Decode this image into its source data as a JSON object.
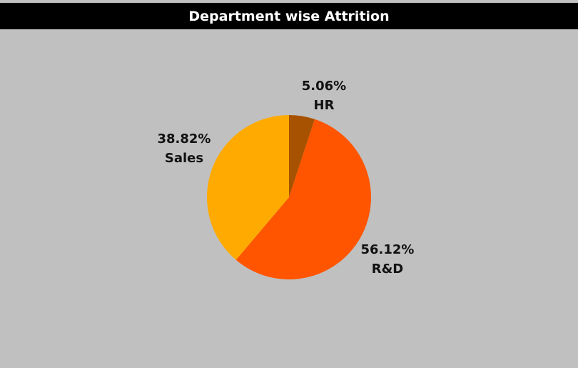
{
  "header": {
    "title": "Department wise Attrition"
  },
  "colors": {
    "background": "#c0c0c0",
    "title_bar": "#000000",
    "title_text": "#ffffff"
  },
  "chart_data": {
    "type": "pie",
    "title": "Department wise Attrition",
    "slices": [
      {
        "label": "HR",
        "value": 5.06,
        "display": "5.06%",
        "color": "#a65200"
      },
      {
        "label": "R&D",
        "value": 56.12,
        "display": "56.12%",
        "color": "#ff5500"
      },
      {
        "label": "Sales",
        "value": 38.82,
        "display": "38.82%",
        "color": "#ffaa00"
      }
    ],
    "start_angle": "12 o'clock",
    "direction": "clockwise"
  }
}
